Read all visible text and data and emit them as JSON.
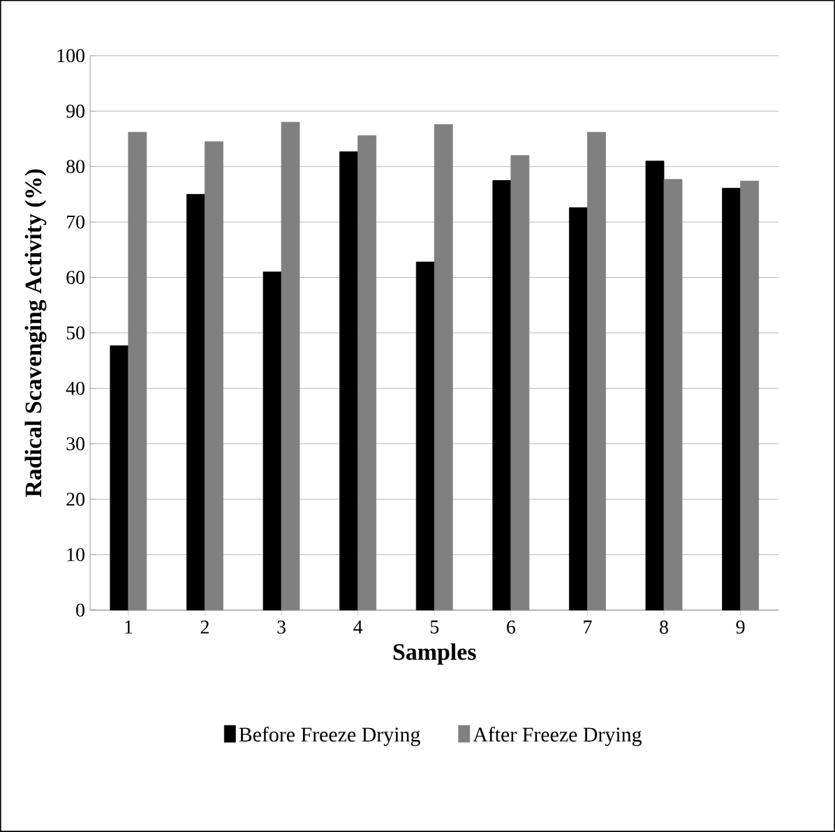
{
  "chart_data": {
    "type": "bar",
    "xlabel": "Samples",
    "ylabel": "Radical Scavenging Activity (%)",
    "categories": [
      "1",
      "2",
      "3",
      "4",
      "5",
      "6",
      "7",
      "8",
      "9"
    ],
    "series": [
      {
        "name": "Before Freeze Drying",
        "color": "#000000",
        "values": [
          47.7,
          75.0,
          61.0,
          82.7,
          62.8,
          77.5,
          72.6,
          81.0,
          76.1
        ]
      },
      {
        "name": "After Freeze Drying",
        "color": "#808080",
        "values": [
          86.2,
          84.5,
          88.0,
          85.6,
          87.6,
          82.0,
          86.2,
          77.7,
          77.4
        ]
      }
    ],
    "ylim": [
      0,
      100
    ],
    "yticks": [
      0,
      10,
      20,
      30,
      40,
      50,
      60,
      70,
      80,
      90,
      100
    ],
    "grid": "y",
    "legend": "bottom"
  }
}
